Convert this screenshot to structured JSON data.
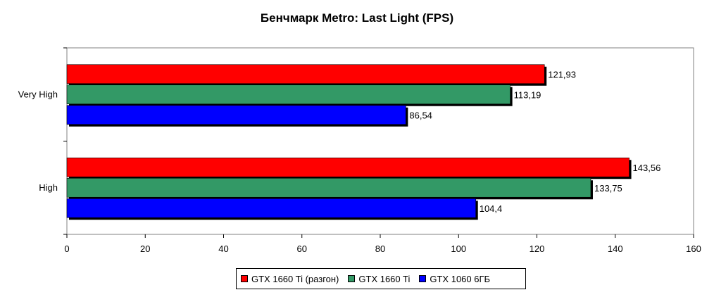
{
  "chart_data": {
    "type": "bar",
    "orientation": "horizontal",
    "title": "Бенчмарк Metro: Last Light (FPS)",
    "xlabel": "",
    "ylabel": "",
    "xlim": [
      0,
      160
    ],
    "x_ticks": [
      "0",
      "20",
      "40",
      "60",
      "80",
      "100",
      "120",
      "140",
      "160"
    ],
    "categories": [
      "Very High",
      "High"
    ],
    "series": [
      {
        "name": "GTX 1660 Ti (разгон)",
        "color": "#ff0000",
        "values": [
          121.93,
          143.56
        ],
        "labels": [
          "121,93",
          "143,56"
        ]
      },
      {
        "name": "GTX 1660 Ti",
        "color": "#339966",
        "values": [
          113.19,
          133.75
        ],
        "labels": [
          "113,19",
          "133,75"
        ]
      },
      {
        "name": "GTX 1060 6ГБ",
        "color": "#0000ff",
        "values": [
          86.54,
          104.4
        ],
        "labels": [
          "86,54",
          "104,4"
        ]
      }
    ],
    "grid": false,
    "legend_position": "bottom"
  }
}
